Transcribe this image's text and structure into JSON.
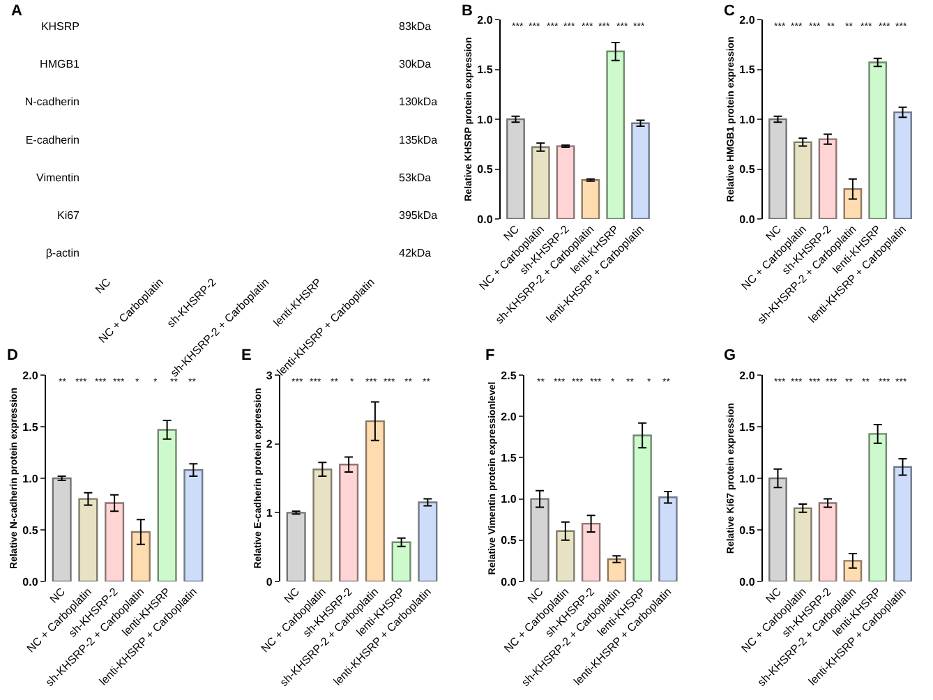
{
  "chart_data": [
    {
      "type": "other",
      "title": "A",
      "categories": [
        "NC",
        "NC + Carboplatin",
        "sh-KHSRP-2",
        "sh-KHSRP-2 + Carboplatin",
        "lenti-KHSRP",
        "lenti-KHSRP + Carboplatin"
      ],
      "y_categories": [
        "KHSRP",
        "HMGB1",
        "N-cadherin",
        "E-cadherin",
        "Vimentin",
        "Ki67",
        "β-actin"
      ],
      "y2_categories": [
        "83kDa",
        "30kDa",
        "130kDa",
        "135kDa",
        "53kDa",
        "395kDa",
        "42kDa"
      ]
    },
    {
      "type": "bar",
      "title": "B",
      "ylabel": "Relative KHSRP protein expression",
      "categories": [
        "NC",
        "NC + Carboplatin",
        "sh-KHSRP-2",
        "sh-KHSRP-2 + Carboplatin",
        "lenti-KHSRP",
        "lenti-KHSRP + Carboplatin"
      ],
      "values": [
        1.0,
        0.72,
        0.73,
        0.39,
        1.68,
        0.96
      ],
      "errors": [
        0.03,
        0.04,
        0.01,
        0.01,
        0.09,
        0.03
      ],
      "colors": [
        "#d4d4d4",
        "#e8e2c4",
        "#ffd4d4",
        "#ffdcb0",
        "#ccfacc",
        "#cddcf8"
      ],
      "ylim": [
        0,
        2.0
      ],
      "yticks": [
        {
          "value": 0,
          "label": "0.0"
        },
        0.5,
        {
          "value": 1,
          "label": "1.0"
        },
        1.5,
        {
          "value": 2,
          "label": "2.0"
        }
      ],
      "annotations": [
        "***",
        "***",
        "***",
        "***",
        "***",
        "***",
        "***",
        "***"
      ]
    },
    {
      "type": "bar",
      "title": "C",
      "ylabel": "Relative HMGB1 protein expression",
      "categories": [
        "NC",
        "NC + Carboplatin",
        "sh-KHSRP-2",
        "sh-KHSRP-2 + Carboplatin",
        "lenti-KHSRP",
        "lenti-KHSRP + Carboplatin"
      ],
      "values": [
        1.0,
        0.77,
        0.8,
        0.3,
        1.57,
        1.07
      ],
      "errors": [
        0.03,
        0.04,
        0.05,
        0.1,
        0.04,
        0.05
      ],
      "colors": [
        "#d4d4d4",
        "#e8e2c4",
        "#ffd4d4",
        "#ffdcb0",
        "#ccfacc",
        "#cddcf8"
      ],
      "ylim": [
        0,
        2.0
      ],
      "yticks": [
        {
          "value": 0,
          "label": "0.0"
        },
        0.5,
        {
          "value": 1,
          "label": "1.0"
        },
        1.5,
        {
          "value": 2,
          "label": "2.0"
        }
      ],
      "annotations": [
        "***",
        "***",
        "***",
        "**",
        "**",
        "***",
        "***",
        "***"
      ]
    },
    {
      "type": "bar",
      "title": "D",
      "ylabel": "Relative N-cadherin protein expression",
      "categories": [
        "NC",
        "NC + Carboplatin",
        "sh-KHSRP-2",
        "sh-KHSRP-2 + Carboplatin",
        "lenti-KHSRP",
        "lenti-KHSRP + Carboplatin"
      ],
      "values": [
        1.0,
        0.8,
        0.76,
        0.48,
        1.47,
        1.08
      ],
      "errors": [
        0.02,
        0.06,
        0.08,
        0.12,
        0.09,
        0.06
      ],
      "colors": [
        "#d4d4d4",
        "#e8e2c4",
        "#ffd4d4",
        "#ffdcb0",
        "#ccfacc",
        "#cddcf8"
      ],
      "ylim": [
        0,
        2.0
      ],
      "yticks": [
        {
          "value": 0,
          "label": "0.0"
        },
        0.5,
        {
          "value": 1,
          "label": "1.0"
        },
        1.5,
        {
          "value": 2,
          "label": "2.0"
        }
      ],
      "annotations": [
        "**",
        "***",
        "***",
        "***",
        "*",
        "*",
        "**",
        "**"
      ]
    },
    {
      "type": "bar",
      "title": "E",
      "ylabel": "Relative E-cadherin protein expression",
      "categories": [
        "NC",
        "NC + Carboplatin",
        "sh-KHSRP-2",
        "sh-KHSRP-2 + Carboplatin",
        "lenti-KHSRP",
        "lenti-KHSRP + Carboplatin"
      ],
      "values": [
        1.0,
        1.63,
        1.7,
        2.33,
        0.57,
        1.15
      ],
      "errors": [
        0.02,
        0.1,
        0.11,
        0.28,
        0.06,
        0.05
      ],
      "colors": [
        "#d4d4d4",
        "#e8e2c4",
        "#ffd4d4",
        "#ffdcb0",
        "#ccfacc",
        "#cddcf8"
      ],
      "ylim": [
        0,
        3
      ],
      "yticks": [
        0,
        1,
        2,
        3
      ],
      "annotations": [
        "***",
        "***",
        "**",
        "*",
        "***",
        "***",
        "**",
        "**"
      ]
    },
    {
      "type": "bar",
      "title": "F",
      "ylabel": "Relative Vimentin protein expressionlevel",
      "categories": [
        "NC",
        "NC + Carboplatin",
        "sh-KHSRP-2",
        "sh-KHSRP-2 + Carboplatin",
        "lenti-KHSRP",
        "lenti-KHSRP + Carboplatin"
      ],
      "values": [
        1.0,
        0.61,
        0.7,
        0.27,
        1.77,
        1.02
      ],
      "errors": [
        0.1,
        0.11,
        0.1,
        0.04,
        0.15,
        0.07
      ],
      "colors": [
        "#d4d4d4",
        "#e8e2c4",
        "#ffd4d4",
        "#ffdcb0",
        "#ccfacc",
        "#cddcf8"
      ],
      "ylim": [
        0,
        2.5
      ],
      "yticks": [
        {
          "value": 0,
          "label": "0.0"
        },
        0.5,
        {
          "value": 1,
          "label": "1.0"
        },
        1.5,
        {
          "value": 2,
          "label": "2.0"
        },
        2.5
      ],
      "annotations": [
        "**",
        "***",
        "***",
        "***",
        "*",
        "**",
        "*",
        "**"
      ]
    },
    {
      "type": "bar",
      "title": "G",
      "ylabel": "Relative Ki67 protein expression",
      "categories": [
        "NC",
        "NC + Carboplatin",
        "sh-KHSRP-2",
        "sh-KHSRP-2 + Carboplatin",
        "lenti-KHSRP",
        "lenti-KHSRP + Carboplatin"
      ],
      "values": [
        1.0,
        0.71,
        0.76,
        0.2,
        1.43,
        1.11
      ],
      "errors": [
        0.09,
        0.04,
        0.04,
        0.07,
        0.09,
        0.08
      ],
      "colors": [
        "#d4d4d4",
        "#e8e2c4",
        "#ffd4d4",
        "#ffdcb0",
        "#ccfacc",
        "#cddcf8"
      ],
      "ylim": [
        0,
        2.0
      ],
      "yticks": [
        {
          "value": 0,
          "label": "0.0"
        },
        0.5,
        {
          "value": 1,
          "label": "1.0"
        },
        1.5,
        {
          "value": 2,
          "label": "2.0"
        }
      ],
      "annotations": [
        "***",
        "***",
        "***",
        "***",
        "**",
        "**",
        "***",
        "***"
      ]
    }
  ]
}
